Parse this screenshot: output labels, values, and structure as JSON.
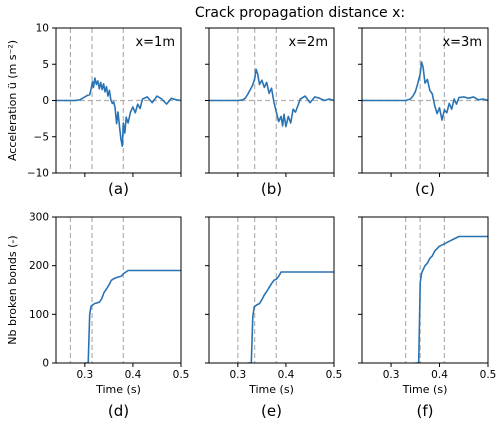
{
  "figure_title": "Crack propagation distance x:",
  "line_color": "#2a73b3",
  "dashed_color": "#b0b0b0",
  "chart_data": [
    {
      "type": "line",
      "panel": "(a)",
      "annotation": "x=1m",
      "ylabel": "Acceleration ü (m s⁻²)",
      "xlim": [
        0.24,
        0.5
      ],
      "ylim": [
        -10,
        10
      ],
      "yticks": [
        -10,
        -5,
        0,
        5,
        10
      ],
      "vlines": [
        0.27,
        0.315,
        0.38
      ],
      "x": [
        0.24,
        0.26,
        0.28,
        0.29,
        0.295,
        0.3,
        0.305,
        0.31,
        0.313,
        0.316,
        0.318,
        0.321,
        0.324,
        0.327,
        0.33,
        0.333,
        0.336,
        0.339,
        0.342,
        0.345,
        0.348,
        0.351,
        0.354,
        0.357,
        0.36,
        0.363,
        0.366,
        0.369,
        0.372,
        0.375,
        0.378,
        0.38,
        0.383,
        0.386,
        0.39,
        0.395,
        0.4,
        0.405,
        0.41,
        0.415,
        0.42,
        0.43,
        0.44,
        0.45,
        0.46,
        0.47,
        0.48,
        0.49,
        0.5
      ],
      "y": [
        0,
        0,
        0,
        0.1,
        0.3,
        0.5,
        0.7,
        0.8,
        1.6,
        2.6,
        1.8,
        3.1,
        2.2,
        2.7,
        1.6,
        2.5,
        1.5,
        2.3,
        1.2,
        1.9,
        0.6,
        1.4,
        0.1,
        -0.4,
        -0.2,
        -1.0,
        -3.2,
        -1.6,
        -3.6,
        -5.3,
        -6.3,
        -3.1,
        -4.5,
        -2.3,
        -3.1,
        -1.6,
        -0.9,
        -1.7,
        -0.5,
        -1.1,
        0.2,
        0.5,
        -0.3,
        0.6,
        0.2,
        -0.5,
        0.3,
        0.1,
        0.0
      ]
    },
    {
      "type": "line",
      "panel": "(b)",
      "annotation": "x=2m",
      "xlim": [
        0.24,
        0.5
      ],
      "ylim": [
        -10,
        10
      ],
      "vlines": [
        0.3,
        0.335,
        0.38
      ],
      "x": [
        0.24,
        0.29,
        0.3,
        0.31,
        0.315,
        0.32,
        0.325,
        0.33,
        0.335,
        0.338,
        0.341,
        0.345,
        0.35,
        0.355,
        0.36,
        0.365,
        0.37,
        0.375,
        0.38,
        0.385,
        0.39,
        0.393,
        0.396,
        0.4,
        0.405,
        0.41,
        0.415,
        0.42,
        0.43,
        0.44,
        0.45,
        0.46,
        0.47,
        0.48,
        0.49,
        0.5
      ],
      "y": [
        0,
        0,
        0,
        0.1,
        0.3,
        0.8,
        1.4,
        2.0,
        3.0,
        4.3,
        3.7,
        2.2,
        2.8,
        1.8,
        2.5,
        1.0,
        1.7,
        -0.2,
        -1.6,
        -2.9,
        -2.2,
        -3.5,
        -1.9,
        -3.6,
        -2.2,
        -3.1,
        -1.2,
        -1.6,
        0.2,
        0.6,
        -0.3,
        0.5,
        0.3,
        0.0,
        0.2,
        0.0
      ]
    },
    {
      "type": "line",
      "panel": "(c)",
      "annotation": "x=3m",
      "xlim": [
        0.24,
        0.5
      ],
      "ylim": [
        -10,
        10
      ],
      "vlines": [
        0.33,
        0.36,
        0.41
      ],
      "x": [
        0.24,
        0.3,
        0.32,
        0.33,
        0.34,
        0.345,
        0.35,
        0.355,
        0.36,
        0.363,
        0.366,
        0.37,
        0.375,
        0.38,
        0.385,
        0.39,
        0.395,
        0.4,
        0.405,
        0.41,
        0.415,
        0.42,
        0.425,
        0.43,
        0.435,
        0.44,
        0.45,
        0.46,
        0.47,
        0.48,
        0.49,
        0.5
      ],
      "y": [
        0,
        0,
        0,
        0,
        0.2,
        0.6,
        1.2,
        2.3,
        3.7,
        5.3,
        4.6,
        2.4,
        2.9,
        1.4,
        0.9,
        -0.7,
        -1.8,
        -1.0,
        -2.7,
        -1.3,
        -1.7,
        -0.4,
        -1.2,
        0.2,
        -0.5,
        0.4,
        0.5,
        0.3,
        0.5,
        0.1,
        0.2,
        0.0
      ]
    },
    {
      "type": "line",
      "panel": "(d)",
      "ylabel": "Nb broken bonds (-)",
      "xlabel": "Time (s)",
      "xlim": [
        0.24,
        0.5
      ],
      "ylim": [
        0,
        300
      ],
      "xticks": [
        0.3,
        0.4,
        0.5
      ],
      "yticks": [
        0,
        100,
        200,
        300
      ],
      "vlines": [
        0.27,
        0.315,
        0.38
      ],
      "x": [
        0.3,
        0.307,
        0.31,
        0.313,
        0.32,
        0.33,
        0.335,
        0.34,
        0.345,
        0.35,
        0.355,
        0.36,
        0.365,
        0.37,
        0.375,
        0.38,
        0.39,
        0.4,
        0.5
      ],
      "y": [
        0,
        0,
        100,
        117,
        122,
        125,
        132,
        145,
        152,
        160,
        170,
        173,
        175,
        177,
        178,
        183,
        190,
        190,
        190
      ]
    },
    {
      "type": "line",
      "panel": "(e)",
      "xlabel": "Time (s)",
      "xlim": [
        0.24,
        0.5
      ],
      "ylim": [
        0,
        300
      ],
      "xticks": [
        0.3,
        0.4,
        0.5
      ],
      "vlines": [
        0.3,
        0.335,
        0.38
      ],
      "x": [
        0.32,
        0.328,
        0.331,
        0.334,
        0.34,
        0.345,
        0.35,
        0.355,
        0.36,
        0.365,
        0.37,
        0.375,
        0.38,
        0.385,
        0.39,
        0.4,
        0.5
      ],
      "y": [
        0,
        0,
        95,
        115,
        120,
        122,
        130,
        140,
        147,
        155,
        163,
        170,
        172,
        178,
        187,
        187,
        187
      ]
    },
    {
      "type": "line",
      "panel": "(f)",
      "xlabel": "Time (s)",
      "xlim": [
        0.24,
        0.5
      ],
      "ylim": [
        0,
        300
      ],
      "xticks": [
        0.3,
        0.4,
        0.5
      ],
      "vlines": [
        0.33,
        0.36,
        0.41
      ],
      "x": [
        0.35,
        0.357,
        0.36,
        0.363,
        0.37,
        0.375,
        0.38,
        0.385,
        0.39,
        0.395,
        0.4,
        0.41,
        0.42,
        0.43,
        0.44,
        0.5
      ],
      "y": [
        0,
        0,
        165,
        185,
        200,
        205,
        215,
        220,
        230,
        235,
        240,
        245,
        250,
        255,
        260,
        260
      ]
    }
  ]
}
